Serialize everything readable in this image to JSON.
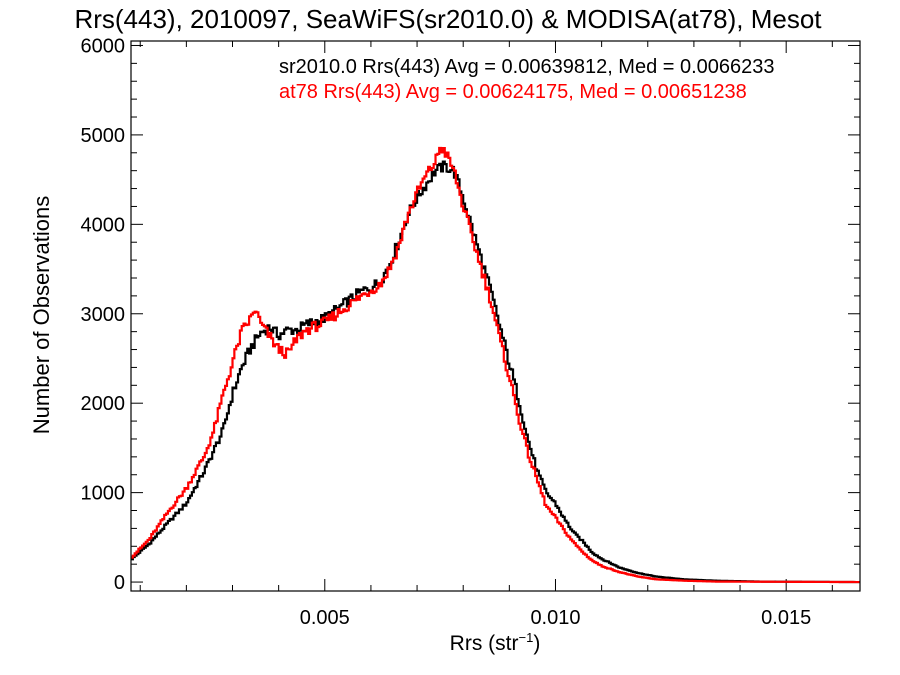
{
  "chart_data": {
    "type": "line",
    "title": "Rrs(443), 2010097, SeaWiFS(sr2010.0) & MODISA(at78), Mesot",
    "xlabel": "Rrs (str",
    "xlabel_sup": "−1",
    "xlabel_close": ")",
    "ylabel": "Number of Observations",
    "xlim": [
      0.0008,
      0.0166
    ],
    "ylim": [
      -100,
      6050
    ],
    "xticks": [
      0.005,
      0.01,
      0.015
    ],
    "xtick_labels": [
      "0.005",
      "0.010",
      "0.015"
    ],
    "yticks": [
      0,
      1000,
      2000,
      3000,
      4000,
      5000,
      6000
    ],
    "ytick_labels": [
      "0",
      "1000",
      "2000",
      "3000",
      "4000",
      "5000",
      "6000"
    ],
    "grid": false,
    "legend_position": "top",
    "series": [
      {
        "name": "sr2010.0",
        "color": "#000000",
        "annotation": "sr2010.0 Rrs(443) Avg = 0.00639812, Med = 0.0066233",
        "points": [
          [
            0.0008,
            250
          ],
          [
            0.0012,
            430
          ],
          [
            0.0016,
            660
          ],
          [
            0.002,
            880
          ],
          [
            0.0024,
            1250
          ],
          [
            0.0028,
            1700
          ],
          [
            0.003,
            2100
          ],
          [
            0.0032,
            2400
          ],
          [
            0.0034,
            2620
          ],
          [
            0.0036,
            2780
          ],
          [
            0.0038,
            2850
          ],
          [
            0.004,
            2760
          ],
          [
            0.0042,
            2820
          ],
          [
            0.0044,
            2820
          ],
          [
            0.0046,
            2880
          ],
          [
            0.005,
            2950
          ],
          [
            0.0054,
            3100
          ],
          [
            0.0058,
            3250
          ],
          [
            0.0062,
            3350
          ],
          [
            0.0064,
            3550
          ],
          [
            0.0066,
            3800
          ],
          [
            0.0068,
            4100
          ],
          [
            0.007,
            4300
          ],
          [
            0.0072,
            4450
          ],
          [
            0.0074,
            4600
          ],
          [
            0.0076,
            4650
          ],
          [
            0.0078,
            4600
          ],
          [
            0.008,
            4300
          ],
          [
            0.0082,
            3950
          ],
          [
            0.0084,
            3600
          ],
          [
            0.0086,
            3250
          ],
          [
            0.0088,
            2850
          ],
          [
            0.009,
            2450
          ],
          [
            0.0092,
            2050
          ],
          [
            0.0094,
            1600
          ],
          [
            0.0096,
            1250
          ],
          [
            0.0098,
            1000
          ],
          [
            0.01,
            880
          ],
          [
            0.0102,
            700
          ],
          [
            0.0104,
            550
          ],
          [
            0.0106,
            450
          ],
          [
            0.0108,
            330
          ],
          [
            0.011,
            260
          ],
          [
            0.0114,
            160
          ],
          [
            0.0118,
            100
          ],
          [
            0.0122,
            60
          ],
          [
            0.0128,
            30
          ],
          [
            0.0135,
            15
          ],
          [
            0.0145,
            5
          ],
          [
            0.0166,
            0
          ]
        ]
      },
      {
        "name": "at78",
        "color": "#ff0000",
        "annotation": "at78 Rrs(443) Avg = 0.00624175, Med = 0.00651238",
        "points": [
          [
            0.0008,
            270
          ],
          [
            0.0012,
            480
          ],
          [
            0.0016,
            780
          ],
          [
            0.002,
            1050
          ],
          [
            0.0024,
            1420
          ],
          [
            0.0026,
            1700
          ],
          [
            0.0028,
            2100
          ],
          [
            0.003,
            2450
          ],
          [
            0.0032,
            2800
          ],
          [
            0.0034,
            2950
          ],
          [
            0.0035,
            3050
          ],
          [
            0.0036,
            2900
          ],
          [
            0.0038,
            2750
          ],
          [
            0.004,
            2600
          ],
          [
            0.0042,
            2550
          ],
          [
            0.0044,
            2720
          ],
          [
            0.0046,
            2820
          ],
          [
            0.005,
            2900
          ],
          [
            0.0054,
            3050
          ],
          [
            0.0058,
            3200
          ],
          [
            0.0062,
            3330
          ],
          [
            0.0064,
            3500
          ],
          [
            0.0066,
            3750
          ],
          [
            0.0068,
            4100
          ],
          [
            0.007,
            4350
          ],
          [
            0.0072,
            4550
          ],
          [
            0.0074,
            4700
          ],
          [
            0.0075,
            4860
          ],
          [
            0.0076,
            4820
          ],
          [
            0.0078,
            4600
          ],
          [
            0.008,
            4200
          ],
          [
            0.0082,
            3850
          ],
          [
            0.0084,
            3500
          ],
          [
            0.0086,
            3150
          ],
          [
            0.0088,
            2700
          ],
          [
            0.009,
            2300
          ],
          [
            0.0092,
            1850
          ],
          [
            0.0094,
            1450
          ],
          [
            0.0096,
            1150
          ],
          [
            0.0098,
            850
          ],
          [
            0.01,
            720
          ],
          [
            0.0102,
            570
          ],
          [
            0.0104,
            440
          ],
          [
            0.0106,
            330
          ],
          [
            0.0108,
            240
          ],
          [
            0.011,
            180
          ],
          [
            0.0114,
            110
          ],
          [
            0.0118,
            60
          ],
          [
            0.0122,
            30
          ],
          [
            0.0128,
            15
          ],
          [
            0.0135,
            5
          ],
          [
            0.0166,
            0
          ]
        ]
      }
    ]
  }
}
